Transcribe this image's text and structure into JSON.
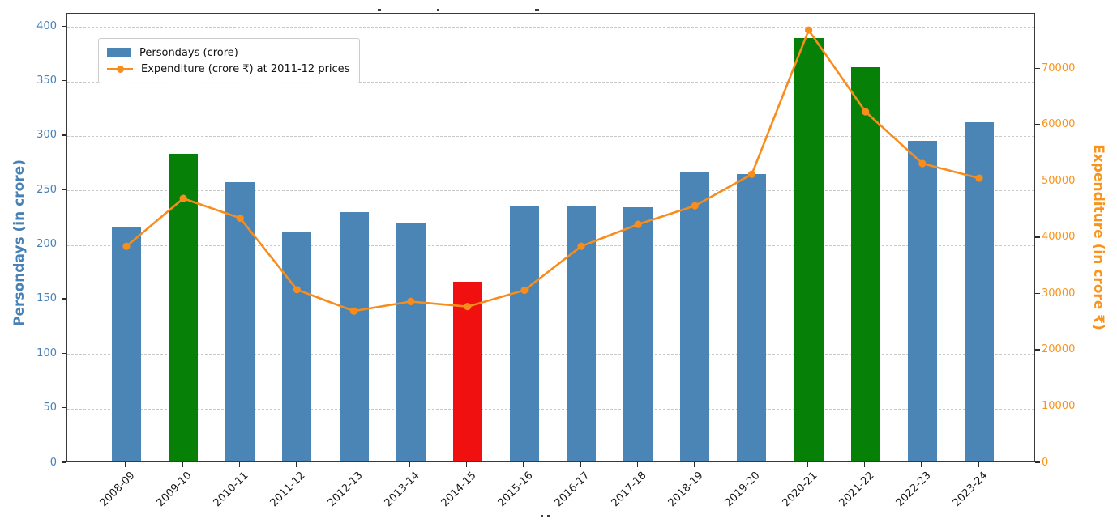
{
  "colors": {
    "bar_blue": "#4a85b5",
    "bar_green": "#078007",
    "bar_red": "#f01010",
    "line_orange": "#f88c1d",
    "axis_blue": "#4781b6",
    "axis_orange": "#f9941b",
    "grid": "#c9c9c9",
    "spine": "#3a3a3a",
    "xtick_text": "#1a1a1a"
  },
  "chart_data": {
    "type": "bar+line",
    "categories": [
      "2008-09",
      "2009-10",
      "2010-11",
      "2011-12",
      "2012-13",
      "2013-14",
      "2014-15",
      "2015-16",
      "2016-17",
      "2017-18",
      "2018-19",
      "2019-20",
      "2020-21",
      "2021-22",
      "2022-23",
      "2023-24"
    ],
    "series": [
      {
        "name": "Persondays (crore)",
        "type": "bar",
        "axis": "left",
        "values": [
          216,
          283,
          257,
          211,
          230,
          220,
          166,
          235,
          235,
          234,
          267,
          265,
          389,
          363,
          295,
          312
        ],
        "colors": [
          "#4a85b5",
          "#078007",
          "#4a85b5",
          "#4a85b5",
          "#4a85b5",
          "#4a85b5",
          "#f01010",
          "#4a85b5",
          "#4a85b5",
          "#4a85b5",
          "#4a85b5",
          "#4a85b5",
          "#078007",
          "#078007",
          "#4a85b5",
          "#4a85b5"
        ]
      },
      {
        "name": "Expenditure (crore ₹) at 2011-12 prices",
        "type": "line",
        "axis": "right",
        "color": "#f88c1d",
        "values": [
          38500,
          47000,
          43500,
          30800,
          27000,
          28700,
          27800,
          30700,
          38500,
          42400,
          45700,
          51300,
          76900,
          62400,
          53200,
          50600
        ]
      }
    ],
    "y_left": {
      "label": "Persondays (in crore)",
      "ticks": [
        0,
        50,
        100,
        150,
        200,
        250,
        300,
        350,
        400
      ],
      "lim": [
        0,
        412
      ],
      "color": "#4781b6"
    },
    "y_right": {
      "label": "Expenditure (in crore ₹)",
      "ticks": [
        0,
        10000,
        20000,
        30000,
        40000,
        50000,
        60000,
        70000
      ],
      "lim": [
        0,
        79800
      ],
      "color": "#f9941b"
    },
    "grid": "horizontal-dashed",
    "legend_position": "upper-left",
    "x_tick_rotation": 45
  }
}
